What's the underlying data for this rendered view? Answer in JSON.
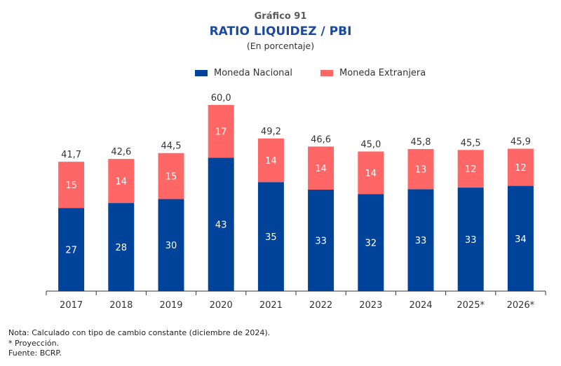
{
  "header": {
    "chart_number": "Gráfico 91",
    "title": "RATIO LIQUIDEZ / PBI",
    "unit": "(En porcentaje)"
  },
  "colors": {
    "moneda_nacional": "#00439a",
    "moneda_extranjera": "#ff6666",
    "title": "#1a4aa0"
  },
  "chart_data": {
    "type": "bar",
    "stacked": true,
    "title": "RATIO LIQUIDEZ / PBI",
    "subtitle": "(En porcentaje)",
    "xlabel": "",
    "ylabel": "",
    "ylim": [
      0,
      60
    ],
    "grid": false,
    "legend_position": "top-center",
    "categories": [
      "2017",
      "2018",
      "2019",
      "2020",
      "2021",
      "2022",
      "2023",
      "2024",
      "2025*",
      "2026*"
    ],
    "series": [
      {
        "name": "Moneda Nacional",
        "color": "#00439a",
        "values": [
          27,
          28,
          30,
          43,
          35,
          33,
          32,
          33,
          33,
          34
        ]
      },
      {
        "name": "Moneda Extranjera",
        "color": "#ff6666",
        "values": [
          15,
          14,
          15,
          17,
          14,
          14,
          14,
          13,
          12,
          12
        ]
      }
    ],
    "totals": [
      41.7,
      42.6,
      44.5,
      60.0,
      49.2,
      46.6,
      45.0,
      45.8,
      45.5,
      45.9
    ],
    "total_labels": [
      "41,7",
      "42,6",
      "44,5",
      "60,0",
      "49,2",
      "46,6",
      "45,0",
      "45,8",
      "45,5",
      "45,9"
    ]
  },
  "notes": {
    "nota": "Nota: Calculado con tipo de cambio constante (diciembre de 2024).",
    "projection": "* Proyección.",
    "source": "Fuente: BCRP."
  }
}
